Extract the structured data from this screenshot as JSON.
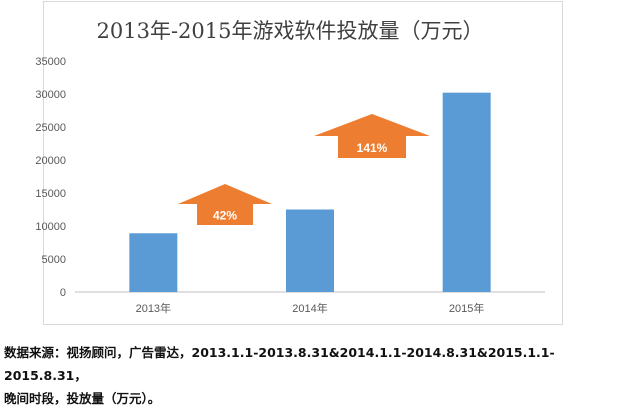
{
  "chart_data": {
    "type": "bar",
    "title": "2013年-2015年游戏软件投放量（万元）",
    "xlabel": "",
    "ylabel": "",
    "categories": [
      "2013年",
      "2014年",
      "2015年"
    ],
    "values": [
      8900,
      12500,
      30200
    ],
    "ylim": [
      0,
      35000
    ],
    "yticks": [
      0,
      5000,
      10000,
      15000,
      20000,
      25000,
      30000,
      35000
    ],
    "grid": false,
    "legend": "none",
    "bar_color": "#5b9bd5",
    "annotations": [
      {
        "text": "42%",
        "between": [
          "2013年",
          "2014年"
        ],
        "color": "#ed7d31"
      },
      {
        "text": "141%",
        "between": [
          "2014年",
          "2015年"
        ],
        "color": "#ed7d31"
      }
    ]
  },
  "source_note": {
    "label": "数据来源：视扬顾问，广告雷达，",
    "dates": "2013.1.1-2013.8.31&2014.1.1-2014.8.31&2015.1.1-2015.8.31，",
    "tail": "晚间时段，投放量（万元）。"
  }
}
